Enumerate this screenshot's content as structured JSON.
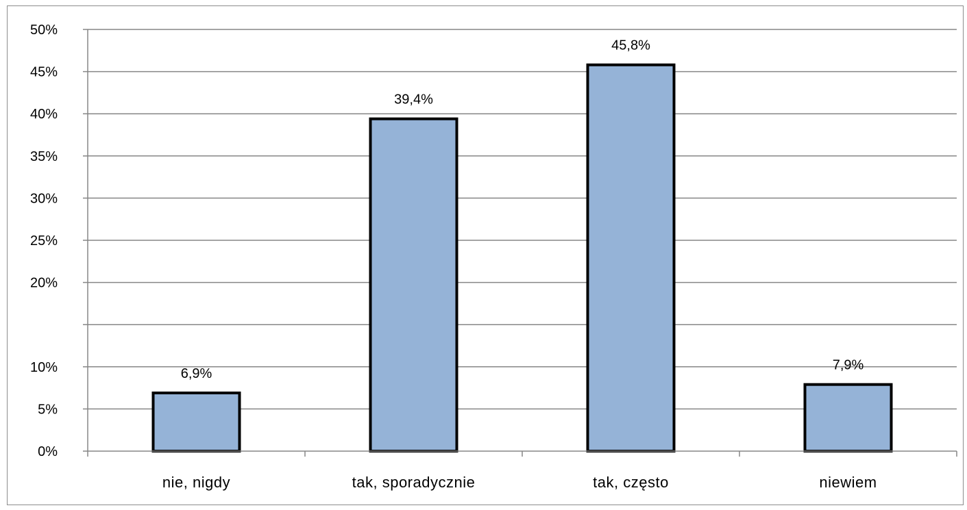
{
  "chart_data": {
    "type": "bar",
    "categories": [
      "nie, nigdy",
      "tak, sporadycznie",
      "tak, często",
      "niewiem"
    ],
    "values": [
      6.9,
      39.4,
      45.8,
      7.9
    ],
    "data_labels": [
      "6,9%",
      "39,4%",
      "45,8%",
      "7,9%"
    ],
    "y_ticks": [
      "0%",
      "5%",
      "10%",
      "20%",
      "25%",
      "30%",
      "35%",
      "40%",
      "45%",
      "50%"
    ],
    "y_tick_values": [
      0,
      5,
      10,
      20,
      25,
      30,
      35,
      40,
      45,
      50
    ],
    "ylim": [
      0,
      50
    ],
    "grid": true,
    "bar_color": "#95b3d7",
    "bar_edge_color": "#000000",
    "gridline_color": "#868686"
  }
}
